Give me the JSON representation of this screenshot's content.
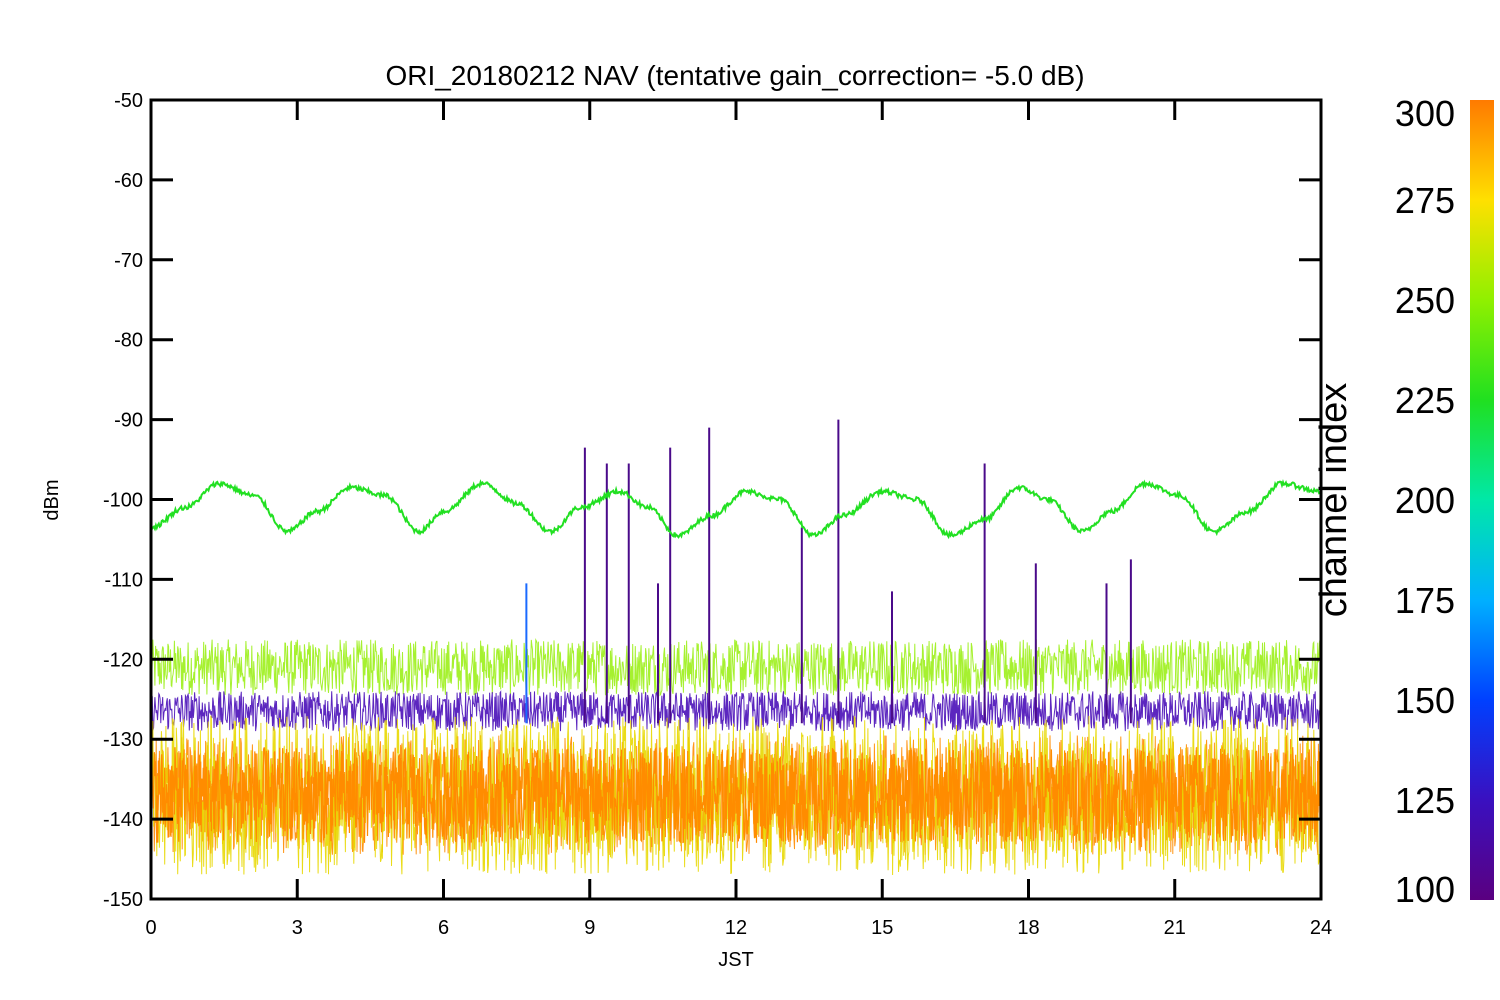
{
  "chart_data": {
    "type": "line",
    "title": "ORI_20180212 NAV (tentative gain_correction= -5.0 dB)",
    "xlabel": "JST",
    "ylabel": "dBm",
    "xlim": [
      0,
      24
    ],
    "ylim": [
      -150,
      -50
    ],
    "xticks": [
      0,
      3,
      6,
      9,
      12,
      15,
      18,
      21,
      24
    ],
    "yticks": [
      -50,
      -60,
      -70,
      -80,
      -90,
      -100,
      -110,
      -120,
      -130,
      -140,
      -150
    ],
    "colorbar": {
      "label": "channel index",
      "range": [
        100,
        300
      ],
      "ticks": [
        100,
        125,
        150,
        175,
        200,
        225,
        250,
        275,
        300
      ],
      "colormap": "rainbow"
    },
    "series": [
      {
        "channel": 230,
        "color": "#22e022",
        "description_values": "sinusoid",
        "x": [
          0,
          0.7,
          1.4,
          2.1,
          2.8,
          3.4,
          4.1,
          4.8,
          5.5,
          6.0,
          6.8,
          7.5,
          8.2,
          8.8,
          9.6,
          10.2,
          10.8,
          11.5,
          12.2,
          12.9,
          13.6,
          14.2,
          15.0,
          15.7,
          16.4,
          17.1,
          17.8,
          18.4,
          19.1,
          19.7,
          20.4,
          21.1,
          21.8,
          22.5,
          23.2,
          24.0
        ],
        "y": [
          -103.5,
          -101.0,
          -98.0,
          -99.5,
          -104.0,
          -101.5,
          -98.5,
          -99.5,
          -104.0,
          -101.5,
          -98.0,
          -100.5,
          -104.0,
          -101.0,
          -99.0,
          -101.0,
          -104.5,
          -102.0,
          -99.0,
          -100.0,
          -104.5,
          -102.0,
          -99.0,
          -100.0,
          -104.5,
          -102.5,
          -98.5,
          -100.0,
          -104.0,
          -101.5,
          -98.0,
          -99.5,
          -104.0,
          -101.5,
          -98.0,
          -99.0
        ]
      },
      {
        "channel": 255,
        "color": "#9cf01a",
        "band_center": -121,
        "band_half_width": 3.5
      },
      {
        "channel": 110,
        "color": "#4a0fb8",
        "band_center": -126.5,
        "band_half_width": 2.5
      },
      {
        "channel": 285,
        "color": "#ff8c00",
        "band_center": -137,
        "band_half_width": 7.5
      },
      {
        "channel": 270,
        "color": "#e8d800",
        "band_center": -137,
        "band_half_width": 10
      }
    ],
    "spikes": [
      {
        "x": 8.9,
        "y": -93.5,
        "color": "#4a0a8a"
      },
      {
        "x": 9.35,
        "y": -95.5,
        "color": "#4a0a8a"
      },
      {
        "x": 9.8,
        "y": -95.5,
        "color": "#4a0a8a"
      },
      {
        "x": 10.65,
        "y": -93.5,
        "color": "#4a0a8a"
      },
      {
        "x": 11.45,
        "y": -91.0,
        "color": "#4a0a8a"
      },
      {
        "x": 13.35,
        "y": -103.5,
        "color": "#4a0a8a"
      },
      {
        "x": 14.1,
        "y": -90.0,
        "color": "#4a0a8a"
      },
      {
        "x": 17.1,
        "y": -95.5,
        "color": "#4a0a8a"
      },
      {
        "x": 18.15,
        "y": -108.0,
        "color": "#4a0a8a"
      },
      {
        "x": 19.6,
        "y": -110.5,
        "color": "#4a0a8a"
      },
      {
        "x": 20.1,
        "y": -107.5,
        "color": "#4a0a8a"
      },
      {
        "x": 7.7,
        "y": -110.5,
        "color": "#1a6aff"
      },
      {
        "x": 10.4,
        "y": -110.5,
        "color": "#4a0a8a"
      },
      {
        "x": 15.2,
        "y": -111.5,
        "color": "#4a0a8a"
      }
    ]
  }
}
